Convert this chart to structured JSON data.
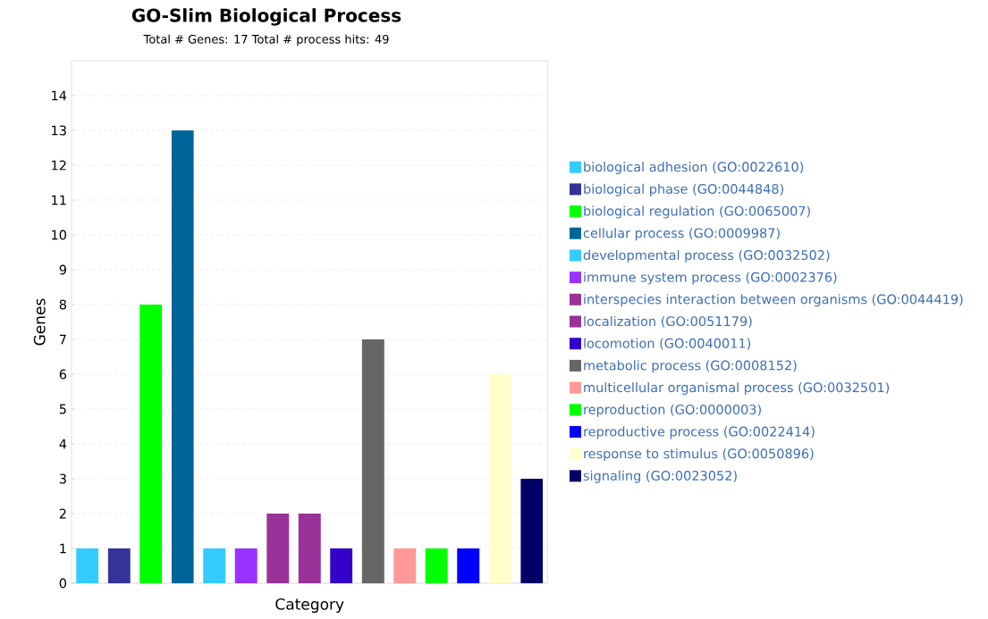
{
  "chart_data": {
    "type": "bar",
    "title": "GO-Slim Biological Process",
    "subtitle": "Total # Genes: 17    Total # process hits: 49",
    "xlabel": "Category",
    "ylabel": "Genes",
    "categories": [
      null,
      null,
      null,
      null,
      null,
      null,
      null,
      null,
      null,
      null,
      null,
      null,
      null,
      null,
      null
    ],
    "series": [
      {
        "name": "biological adhesion (GO:0022610)",
        "color": "#33ccff",
        "values": [
          1,
          null,
          null,
          null,
          null,
          null,
          null,
          null,
          null,
          null,
          null,
          null,
          null,
          null,
          null
        ]
      },
      {
        "name": "biological phase (GO:0044848)",
        "color": "#333399",
        "values": [
          null,
          1,
          null,
          null,
          null,
          null,
          null,
          null,
          null,
          null,
          null,
          null,
          null,
          null,
          null
        ]
      },
      {
        "name": "biological regulation (GO:0065007)",
        "color": "#00ff00",
        "values": [
          null,
          null,
          8,
          null,
          null,
          null,
          null,
          null,
          null,
          null,
          null,
          null,
          null,
          null,
          null
        ]
      },
      {
        "name": "cellular process (GO:0009987)",
        "color": "#006699",
        "values": [
          null,
          null,
          null,
          13,
          null,
          null,
          null,
          null,
          null,
          null,
          null,
          null,
          null,
          null,
          null
        ]
      },
      {
        "name": "developmental process (GO:0032502)",
        "color": "#33ccff",
        "values": [
          null,
          null,
          null,
          null,
          1,
          null,
          null,
          null,
          null,
          null,
          null,
          null,
          null,
          null,
          null
        ]
      },
      {
        "name": "immune system process (GO:0002376)",
        "color": "#9933ff",
        "values": [
          null,
          null,
          null,
          null,
          null,
          1,
          null,
          null,
          null,
          null,
          null,
          null,
          null,
          null,
          null
        ]
      },
      {
        "name": "interspecies interaction between organisms (GO:0044419)",
        "color": "#993399",
        "values": [
          null,
          null,
          null,
          null,
          null,
          null,
          2,
          null,
          null,
          null,
          null,
          null,
          null,
          null,
          null
        ]
      },
      {
        "name": "localization (GO:0051179)",
        "color": "#993399",
        "values": [
          null,
          null,
          null,
          null,
          null,
          null,
          null,
          2,
          null,
          null,
          null,
          null,
          null,
          null,
          null
        ]
      },
      {
        "name": "locomotion (GO:0040011)",
        "color": "#3300cc",
        "values": [
          null,
          null,
          null,
          null,
          null,
          null,
          null,
          null,
          1,
          null,
          null,
          null,
          null,
          null,
          null
        ]
      },
      {
        "name": "metabolic process (GO:0008152)",
        "color": "#666666",
        "values": [
          null,
          null,
          null,
          null,
          null,
          null,
          null,
          null,
          null,
          7,
          null,
          null,
          null,
          null,
          null
        ]
      },
      {
        "name": "multicellular organismal process (GO:0032501)",
        "color": "#ff9999",
        "values": [
          null,
          null,
          null,
          null,
          null,
          null,
          null,
          null,
          null,
          null,
          1,
          null,
          null,
          null,
          null
        ]
      },
      {
        "name": "reproduction (GO:0000003)",
        "color": "#00ff00",
        "values": [
          null,
          null,
          null,
          null,
          null,
          null,
          null,
          null,
          null,
          null,
          null,
          1,
          null,
          null,
          null
        ]
      },
      {
        "name": "reproductive process (GO:0022414)",
        "color": "#0000ff",
        "values": [
          null,
          null,
          null,
          null,
          null,
          null,
          null,
          null,
          null,
          null,
          null,
          null,
          1,
          null,
          null
        ]
      },
      {
        "name": "response to stimulus (GO:0050896)",
        "color": "#ffffcc",
        "values": [
          null,
          null,
          null,
          null,
          null,
          null,
          null,
          null,
          null,
          null,
          null,
          null,
          null,
          6,
          null
        ]
      },
      {
        "name": "signaling (GO:0023052)",
        "color": "#000066",
        "values": [
          null,
          null,
          null,
          null,
          null,
          null,
          null,
          null,
          null,
          null,
          null,
          null,
          null,
          null,
          3
        ]
      }
    ],
    "ylim": [
      0,
      15
    ],
    "yticks": [
      0,
      1,
      2,
      3,
      4,
      5,
      6,
      7,
      8,
      9,
      10,
      11,
      12,
      13,
      14
    ],
    "grid": "y",
    "legend": "right"
  }
}
